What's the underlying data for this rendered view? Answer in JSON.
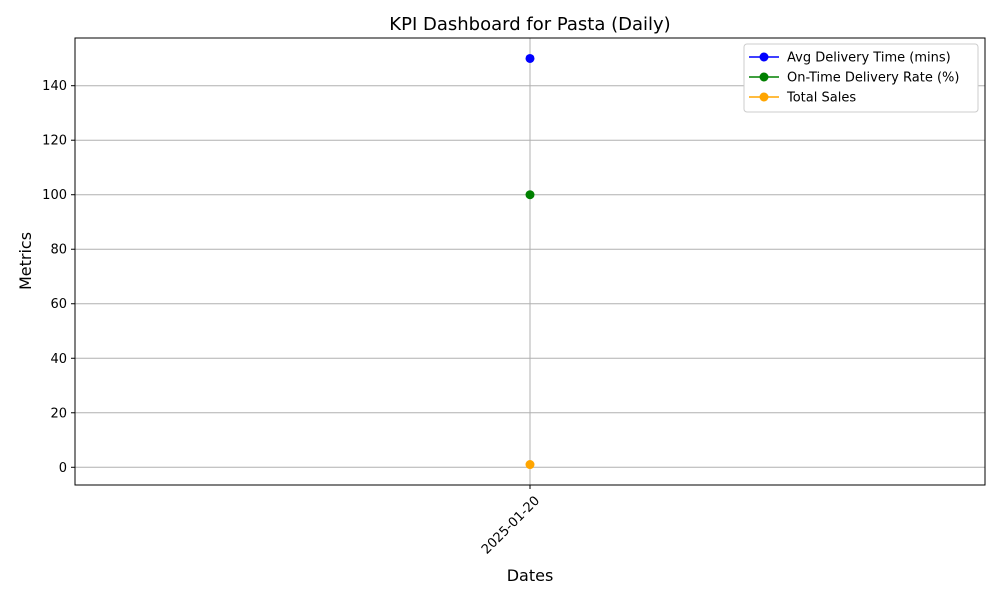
{
  "chart_data": {
    "type": "line",
    "title": "KPI Dashboard for Pasta (Daily)",
    "xlabel": "Dates",
    "ylabel": "Metrics",
    "categories": [
      "2025-01-20"
    ],
    "ylim": [
      -6.5,
      157.5
    ],
    "yticks": [
      0,
      20,
      40,
      60,
      80,
      100,
      120,
      140
    ],
    "grid": true,
    "legend_position": "top-right",
    "series": [
      {
        "name": "Avg Delivery Time (mins)",
        "values": [
          150
        ],
        "color": "#0000ff",
        "marker": "circle"
      },
      {
        "name": "On-Time Delivery Rate (%)",
        "values": [
          100
        ],
        "color": "#008000",
        "marker": "circle"
      },
      {
        "name": "Total Sales",
        "values": [
          1
        ],
        "color": "#ffa500",
        "marker": "circle"
      }
    ]
  }
}
